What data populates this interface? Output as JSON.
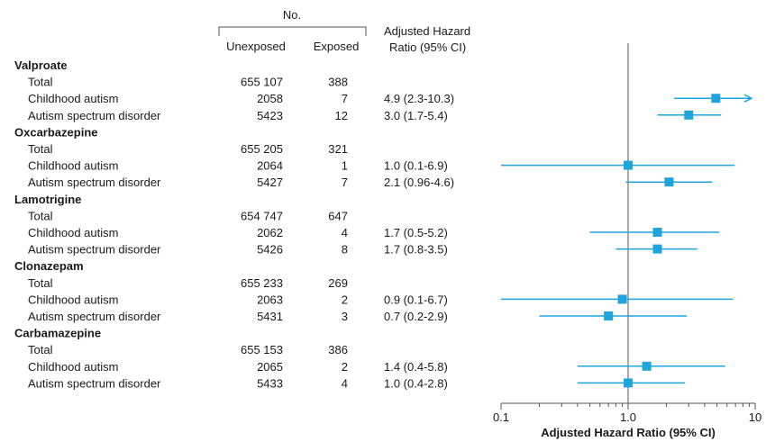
{
  "chart_data": {
    "type": "forest",
    "header": {
      "no": "No.",
      "unexposed": "Unexposed",
      "exposed": "Exposed",
      "hr_line1": "Adjusted Hazard",
      "hr_line2": "Ratio (95% CI)"
    },
    "groups": [
      {
        "name": "Valproate",
        "rows": [
          {
            "label": "Total",
            "unexposed": "655 107",
            "exposed": "388",
            "hr_text": ""
          },
          {
            "label": "Childhood autism",
            "unexposed": "2058",
            "exposed": "7",
            "hr_text": "4.9 (2.3-10.3)",
            "hr": 4.9,
            "lo": 2.3,
            "hi": 10.3
          },
          {
            "label": "Autism spectrum disorder",
            "unexposed": "5423",
            "exposed": "12",
            "hr_text": "3.0 (1.7-5.4)",
            "hr": 3.0,
            "lo": 1.7,
            "hi": 5.4
          }
        ]
      },
      {
        "name": "Oxcarbazepine",
        "rows": [
          {
            "label": "Total",
            "unexposed": "655 205",
            "exposed": "321",
            "hr_text": ""
          },
          {
            "label": "Childhood autism",
            "unexposed": "2064",
            "exposed": "1",
            "hr_text": "1.0 (0.1-6.9)",
            "hr": 1.0,
            "lo": 0.1,
            "hi": 6.9
          },
          {
            "label": "Autism spectrum disorder",
            "unexposed": "5427",
            "exposed": "7",
            "hr_text": "2.1 (0.96-4.6)",
            "hr": 2.1,
            "lo": 0.96,
            "hi": 4.6
          }
        ]
      },
      {
        "name": "Lamotrigine",
        "rows": [
          {
            "label": "Total",
            "unexposed": "654 747",
            "exposed": "647",
            "hr_text": ""
          },
          {
            "label": "Childhood autism",
            "unexposed": "2062",
            "exposed": "4",
            "hr_text": "1.7 (0.5-5.2)",
            "hr": 1.7,
            "lo": 0.5,
            "hi": 5.2
          },
          {
            "label": "Autism spectrum disorder",
            "unexposed": "5426",
            "exposed": "8",
            "hr_text": "1.7 (0.8-3.5)",
            "hr": 1.7,
            "lo": 0.8,
            "hi": 3.5
          }
        ]
      },
      {
        "name": "Clonazepam",
        "rows": [
          {
            "label": "Total",
            "unexposed": "655 233",
            "exposed": "269",
            "hr_text": ""
          },
          {
            "label": "Childhood autism",
            "unexposed": "2063",
            "exposed": "2",
            "hr_text": "0.9 (0.1-6.7)",
            "hr": 0.9,
            "lo": 0.1,
            "hi": 6.7
          },
          {
            "label": "Autism spectrum disorder",
            "unexposed": "5431",
            "exposed": "3",
            "hr_text": "0.7 (0.2-2.9)",
            "hr": 0.7,
            "lo": 0.2,
            "hi": 2.9
          }
        ]
      },
      {
        "name": "Carbamazepine",
        "rows": [
          {
            "label": "Total",
            "unexposed": "655 153",
            "exposed": "386",
            "hr_text": ""
          },
          {
            "label": "Childhood autism",
            "unexposed": "2065",
            "exposed": "2",
            "hr_text": "1.4 (0.4-5.8)",
            "hr": 1.4,
            "lo": 0.4,
            "hi": 5.8
          },
          {
            "label": "Autism spectrum disorder",
            "unexposed": "5433",
            "exposed": "4",
            "hr_text": "1.0 (0.4-2.8)",
            "hr": 1.0,
            "lo": 0.4,
            "hi": 2.8
          }
        ]
      }
    ],
    "x_axis": {
      "label": "Adjusted Hazard Ratio (95% CI)",
      "scale": "log",
      "xlim": [
        0.1,
        10
      ],
      "ticks": [
        0.1,
        1.0,
        10
      ],
      "tick_labels": [
        "0.1",
        "1.0",
        "10"
      ],
      "reference_line": 1.0
    },
    "marker_color": "#1fa5dc"
  }
}
